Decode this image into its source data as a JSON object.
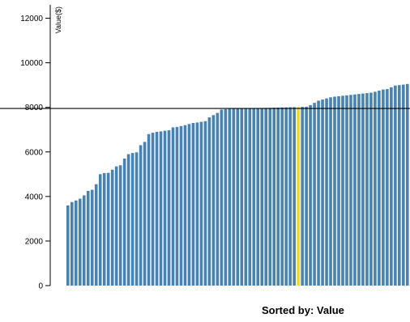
{
  "chart_data": {
    "type": "bar",
    "ylabel": "Value($)",
    "ylim": [
      0,
      12600
    ],
    "yticks": [
      0,
      2000,
      4000,
      6000,
      8000,
      10000,
      12000
    ],
    "grid": false,
    "reference_line": 7950,
    "highlight_index": 57,
    "colors": {
      "bar": "#4682b4",
      "highlight": "#ffd700",
      "axis": "#000000",
      "reference_line": "#000000"
    },
    "values": [
      3600,
      3750,
      3820,
      3900,
      4050,
      4250,
      4300,
      4550,
      5000,
      5050,
      5060,
      5200,
      5350,
      5400,
      5700,
      5900,
      5950,
      5980,
      6300,
      6450,
      6800,
      6860,
      6900,
      6920,
      6950,
      6970,
      7100,
      7120,
      7160,
      7200,
      7250,
      7300,
      7320,
      7350,
      7380,
      7550,
      7650,
      7750,
      7900,
      7920,
      7930,
      7935,
      7940,
      7945,
      7950,
      7955,
      7960,
      7965,
      7970,
      7975,
      7980,
      7985,
      7990,
      7995,
      8000,
      8005,
      8010,
      8015,
      8020,
      8025,
      8100,
      8200,
      8300,
      8350,
      8400,
      8450,
      8480,
      8500,
      8520,
      8540,
      8560,
      8580,
      8600,
      8620,
      8640,
      8660,
      8700,
      8750,
      8800,
      8820,
      8900,
      8980,
      9000,
      9020,
      9050
    ]
  },
  "footer": {
    "sort_label": "Sorted by: Value"
  }
}
